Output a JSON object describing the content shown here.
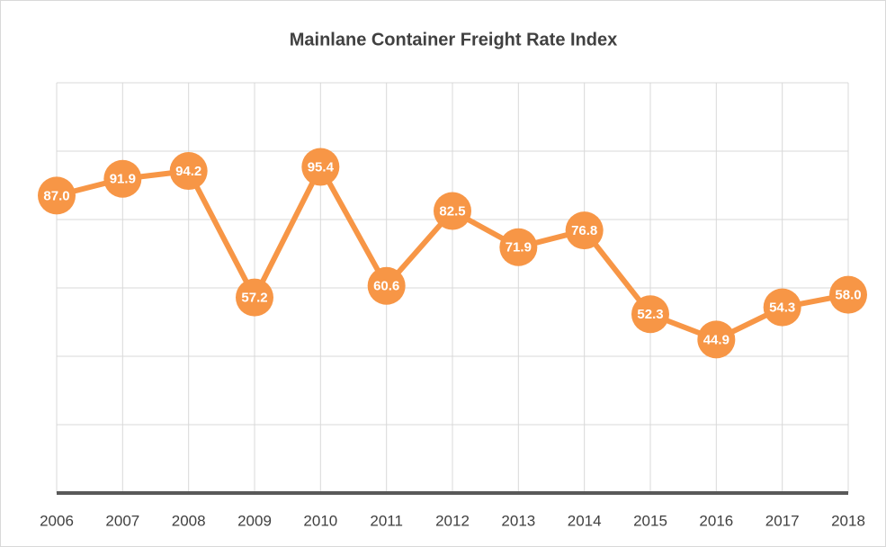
{
  "chart_data": {
    "type": "line",
    "title": "Mainlane Container Freight Rate Index",
    "categories": [
      "2006",
      "2007",
      "2008",
      "2009",
      "2010",
      "2011",
      "2012",
      "2013",
      "2014",
      "2015",
      "2016",
      "2017",
      "2018"
    ],
    "series": [
      {
        "name": "Mainlane Container Freight Rate Index",
        "color": "#f79646",
        "values": [
          87.0,
          91.9,
          94.2,
          57.2,
          95.4,
          60.6,
          82.5,
          71.9,
          76.8,
          52.3,
          44.9,
          54.3,
          58.0
        ],
        "value_labels": [
          "87.0",
          "91.9",
          "94.2",
          "57.2",
          "95.4",
          "60.6",
          "82.5",
          "71.9",
          "76.8",
          "52.3",
          "44.9",
          "54.3",
          "58.0"
        ]
      }
    ],
    "ylim": [
      0,
      120
    ],
    "yticks": [
      0,
      20,
      40,
      60,
      80,
      100,
      120
    ],
    "grid": true
  }
}
